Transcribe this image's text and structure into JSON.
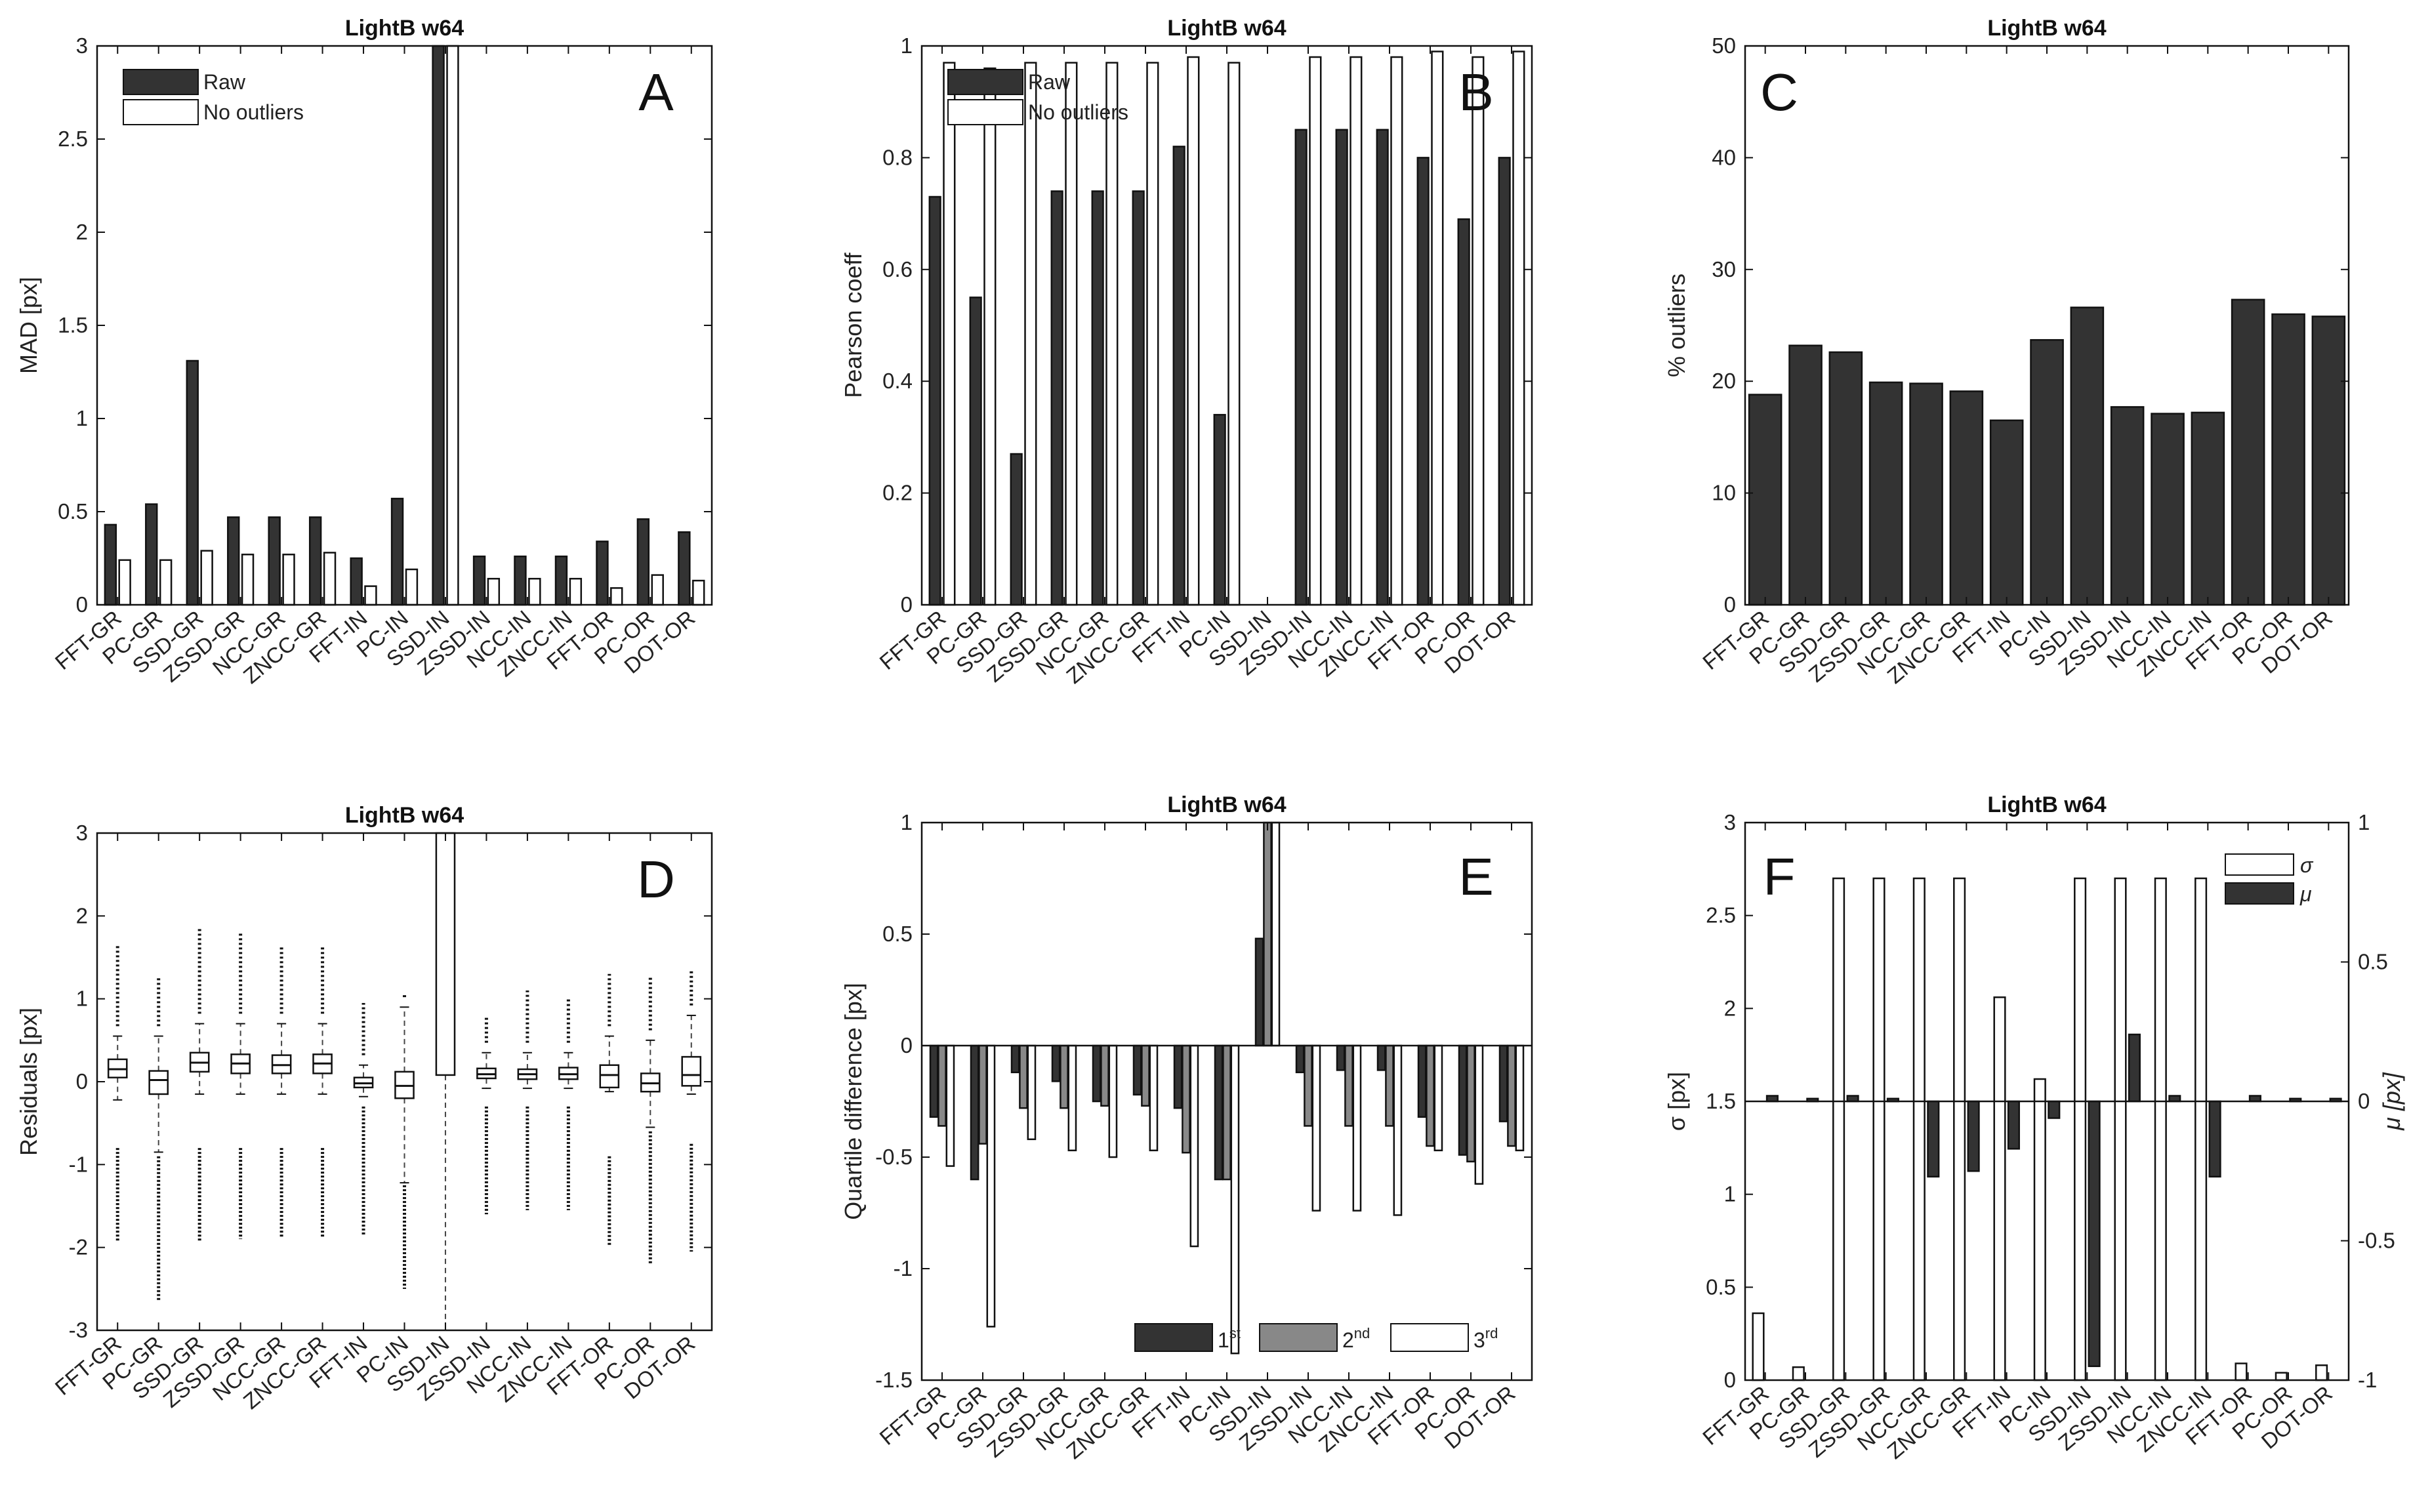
{
  "chart_data": [
    {
      "id": "A",
      "type": "bar",
      "title": "LightB w64",
      "panel_letter": "A",
      "ylabel": "MAD [px]",
      "ylim": [
        0,
        3
      ],
      "yticks": [
        0,
        0.5,
        1,
        1.5,
        2,
        2.5,
        3
      ],
      "ytick_labels": [
        "0",
        "0.5",
        "1",
        "1.5",
        "2",
        "2.5",
        "3"
      ],
      "categories": [
        "FFT-GR",
        "PC-GR",
        "SSD-GR",
        "ZSSD-GR",
        "NCC-GR",
        "ZNCC-GR",
        "FFT-IN",
        "PC-IN",
        "SSD-IN",
        "ZSSD-IN",
        "NCC-IN",
        "ZNCC-IN",
        "FFT-OR",
        "PC-OR",
        "DOT-OR"
      ],
      "legend": [
        "Raw",
        "No outliers"
      ],
      "series": [
        {
          "name": "Raw",
          "color": "#333333",
          "values": [
            0.43,
            0.54,
            1.31,
            0.47,
            0.47,
            0.47,
            0.25,
            0.57,
            3.0,
            0.26,
            0.26,
            0.26,
            0.34,
            0.46,
            0.39
          ]
        },
        {
          "name": "No outliers",
          "color": "#ffffff",
          "values": [
            0.24,
            0.24,
            0.29,
            0.27,
            0.27,
            0.28,
            0.1,
            0.19,
            3.0,
            0.14,
            0.14,
            0.14,
            0.09,
            0.16,
            0.13
          ]
        }
      ]
    },
    {
      "id": "B",
      "type": "bar",
      "title": "LightB w64",
      "panel_letter": "B",
      "ylabel": "Pearson coeff",
      "ylim": [
        0,
        1
      ],
      "yticks": [
        0,
        0.2,
        0.4,
        0.6,
        0.8,
        1
      ],
      "ytick_labels": [
        "0",
        "0.2",
        "0.4",
        "0.6",
        "0.8",
        "1"
      ],
      "categories": [
        "FFT-GR",
        "PC-GR",
        "SSD-GR",
        "ZSSD-GR",
        "NCC-GR",
        "ZNCC-GR",
        "FFT-IN",
        "PC-IN",
        "SSD-IN",
        "ZSSD-IN",
        "NCC-IN",
        "ZNCC-IN",
        "FFT-OR",
        "PC-OR",
        "DOT-OR"
      ],
      "legend": [
        "Raw",
        "No outliers"
      ],
      "series": [
        {
          "name": "Raw",
          "color": "#333333",
          "values": [
            0.73,
            0.55,
            0.27,
            0.74,
            0.74,
            0.74,
            0.82,
            0.34,
            0,
            0.85,
            0.85,
            0.85,
            0.8,
            0.69,
            0.8
          ]
        },
        {
          "name": "No outliers",
          "color": "#ffffff",
          "values": [
            0.97,
            0.96,
            0.97,
            0.97,
            0.97,
            0.97,
            0.98,
            0.97,
            0,
            0.98,
            0.98,
            0.98,
            0.99,
            0.98,
            0.99
          ]
        }
      ]
    },
    {
      "id": "C",
      "type": "bar",
      "title": "LightB w64",
      "panel_letter": "C",
      "ylabel": "% outliers",
      "ylim": [
        0,
        50
      ],
      "yticks": [
        0,
        10,
        20,
        30,
        40,
        50
      ],
      "ytick_labels": [
        "0",
        "10",
        "20",
        "30",
        "40",
        "50"
      ],
      "categories": [
        "FFT-GR",
        "PC-GR",
        "SSD-GR",
        "ZSSD-GR",
        "NCC-GR",
        "ZNCC-GR",
        "FFT-IN",
        "PC-IN",
        "SSD-IN",
        "ZSSD-IN",
        "NCC-IN",
        "ZNCC-IN",
        "FFT-OR",
        "PC-OR",
        "DOT-OR"
      ],
      "series": [
        {
          "name": "% outliers",
          "color": "#333333",
          "values": [
            18.8,
            23.2,
            22.6,
            19.9,
            19.8,
            19.1,
            16.5,
            23.7,
            26.6,
            17.7,
            17.1,
            17.2,
            27.3,
            26.0,
            25.8
          ]
        }
      ]
    },
    {
      "id": "D",
      "type": "boxplot",
      "title": "LightB w64",
      "panel_letter": "D",
      "ylabel": "Residuals [px]",
      "ylim": [
        -3,
        3
      ],
      "yticks": [
        -3,
        -2,
        -1,
        0,
        1,
        2,
        3
      ],
      "ytick_labels": [
        "-3",
        "-2",
        "-1",
        "0",
        "1",
        "2",
        "3"
      ],
      "categories": [
        "FFT-GR",
        "PC-GR",
        "SSD-GR",
        "ZSSD-GR",
        "NCC-GR",
        "ZNCC-GR",
        "FFT-IN",
        "PC-IN",
        "SSD-IN",
        "ZSSD-IN",
        "NCC-IN",
        "ZNCC-IN",
        "FFT-OR",
        "PC-OR",
        "DOT-OR"
      ],
      "boxes": [
        {
          "q1": 0.05,
          "median": 0.15,
          "q3": 0.27,
          "wlo": -0.22,
          "whi": 0.55,
          "ohi": 1.65,
          "olo": -1.92,
          "dlo": -0.8
        },
        {
          "q1": -0.15,
          "median": 0.02,
          "q3": 0.13,
          "wlo": -0.85,
          "whi": 0.55,
          "ohi": 1.25,
          "olo": -2.65,
          "dlo": -0.9
        },
        {
          "q1": 0.12,
          "median": 0.23,
          "q3": 0.35,
          "wlo": -0.15,
          "whi": 0.7,
          "ohi": 1.85,
          "olo": -1.92,
          "dlo": -0.8
        },
        {
          "q1": 0.1,
          "median": 0.22,
          "q3": 0.33,
          "wlo": -0.15,
          "whi": 0.7,
          "ohi": 1.8,
          "olo": -1.9,
          "dlo": -0.8
        },
        {
          "q1": 0.1,
          "median": 0.2,
          "q3": 0.32,
          "wlo": -0.15,
          "whi": 0.7,
          "ohi": 1.65,
          "olo": -1.88,
          "dlo": -0.8
        },
        {
          "q1": 0.1,
          "median": 0.22,
          "q3": 0.33,
          "wlo": -0.15,
          "whi": 0.7,
          "ohi": 1.65,
          "olo": -1.88,
          "dlo": -0.8
        },
        {
          "q1": -0.07,
          "median": -0.02,
          "q3": 0.05,
          "wlo": -0.18,
          "whi": 0.2,
          "ohi": 0.95,
          "olo": -1.85,
          "dlo": -0.3
        },
        {
          "q1": -0.2,
          "median": -0.05,
          "q3": 0.12,
          "wlo": -1.22,
          "whi": 0.9,
          "ohi": 1.05,
          "olo": -2.5,
          "dlo": -1.25
        },
        {
          "q1": 0.08,
          "median": 3.0,
          "q3": 3.0,
          "wlo": -3.0,
          "whi": 3.0,
          "ohi": 3.0,
          "olo": -3.0,
          "dlo": -3.0
        },
        {
          "q1": 0.04,
          "median": 0.09,
          "q3": 0.16,
          "wlo": -0.08,
          "whi": 0.35,
          "ohi": 0.8,
          "olo": -1.6,
          "dlo": -0.3
        },
        {
          "q1": 0.03,
          "median": 0.09,
          "q3": 0.15,
          "wlo": -0.08,
          "whi": 0.35,
          "ohi": 1.1,
          "olo": -1.55,
          "dlo": -0.3
        },
        {
          "q1": 0.03,
          "median": 0.09,
          "q3": 0.17,
          "wlo": -0.08,
          "whi": 0.35,
          "ohi": 1.0,
          "olo": -1.55,
          "dlo": -0.3
        },
        {
          "q1": -0.07,
          "median": 0.08,
          "q3": 0.2,
          "wlo": -0.12,
          "whi": 0.55,
          "ohi": 1.3,
          "olo": -1.97,
          "dlo": -0.9
        },
        {
          "q1": -0.12,
          "median": -0.02,
          "q3": 0.1,
          "wlo": -0.55,
          "whi": 0.5,
          "ohi": 1.28,
          "olo": -2.2,
          "dlo": -0.6
        },
        {
          "q1": -0.05,
          "median": 0.08,
          "q3": 0.3,
          "wlo": -0.15,
          "whi": 0.8,
          "ohi": 1.35,
          "olo": -2.05,
          "dlo": -0.75
        }
      ]
    },
    {
      "id": "E",
      "type": "bar",
      "title": "LightB w64",
      "panel_letter": "E",
      "ylabel": "Quartile difference [px]",
      "ylim": [
        -1.5,
        1
      ],
      "yticks": [
        -1.5,
        -1,
        -0.5,
        0,
        0.5,
        1
      ],
      "ytick_labels": [
        "-1.5",
        "-1",
        "-0.5",
        "0",
        "0.5",
        "1"
      ],
      "categories": [
        "FFT-GR",
        "PC-GR",
        "SSD-GR",
        "ZSSD-GR",
        "NCC-GR",
        "ZNCC-GR",
        "FFT-IN",
        "PC-IN",
        "SSD-IN",
        "ZSSD-IN",
        "NCC-IN",
        "ZNCC-IN",
        "FFT-OR",
        "PC-OR",
        "DOT-OR"
      ],
      "legend": [
        "1st",
        "2nd",
        "3rd"
      ],
      "legend_parts": [
        [
          "1",
          "st"
        ],
        [
          "2",
          "nd"
        ],
        [
          "3",
          "rd"
        ]
      ],
      "series": [
        {
          "name": "1st",
          "color": "#333333",
          "values": [
            -0.32,
            -0.6,
            -0.12,
            -0.16,
            -0.25,
            -0.22,
            -0.28,
            -0.6,
            0.48,
            -0.12,
            -0.11,
            -0.11,
            -0.32,
            -0.49,
            -0.34
          ]
        },
        {
          "name": "2nd",
          "color": "#888888",
          "values": [
            -0.36,
            -0.44,
            -0.28,
            -0.28,
            -0.27,
            -0.27,
            -0.48,
            -0.6,
            1.0,
            -0.36,
            -0.36,
            -0.36,
            -0.45,
            -0.52,
            -0.45
          ]
        },
        {
          "name": "3rd",
          "color": "#ffffff",
          "values": [
            -0.54,
            -1.26,
            -0.42,
            -0.47,
            -0.5,
            -0.47,
            -0.9,
            -1.38,
            1.0,
            -0.74,
            -0.74,
            -0.76,
            -0.47,
            -0.62,
            -0.47
          ]
        }
      ]
    },
    {
      "id": "F",
      "type": "bar",
      "title": "LightB w64",
      "panel_letter": "F",
      "ylabel": "σ [px]",
      "ylabel_right": "μ [px]",
      "ylim": [
        0,
        3
      ],
      "ylim_right": [
        -1,
        1
      ],
      "yticks": [
        0,
        0.5,
        1,
        1.5,
        2,
        2.5,
        3
      ],
      "ytick_labels": [
        "0",
        "0.5",
        "1",
        "1.5",
        "2",
        "2.5",
        "3"
      ],
      "yticks_right": [
        -1,
        -0.5,
        0,
        0.5,
        1
      ],
      "ytick_labels_right": [
        "-1",
        "-0.5",
        "0",
        "0.5",
        "1"
      ],
      "categories": [
        "FFT-GR",
        "PC-GR",
        "SSD-GR",
        "ZSSD-GR",
        "NCC-GR",
        "ZNCC-GR",
        "FFT-IN",
        "PC-IN",
        "SSD-IN",
        "ZSSD-IN",
        "NCC-IN",
        "ZNCC-IN",
        "FFT-OR",
        "PC-OR",
        "DOT-OR"
      ],
      "legend": [
        "σ",
        "μ"
      ],
      "series": [
        {
          "name": "σ",
          "axis": "left",
          "color": "#ffffff",
          "values": [
            0.36,
            0.07,
            2.7,
            2.7,
            2.7,
            2.7,
            2.06,
            1.62,
            2.7,
            2.7,
            2.7,
            2.7,
            0.09,
            0.04,
            0.08
          ]
        },
        {
          "name": "μ",
          "axis": "right",
          "color": "#333333",
          "values": [
            0.02,
            0.01,
            0.02,
            0.01,
            -0.27,
            -0.25,
            -0.17,
            -0.06,
            -0.95,
            0.24,
            0.02,
            -0.27,
            0.02,
            0.01,
            0.01
          ]
        }
      ]
    }
  ]
}
